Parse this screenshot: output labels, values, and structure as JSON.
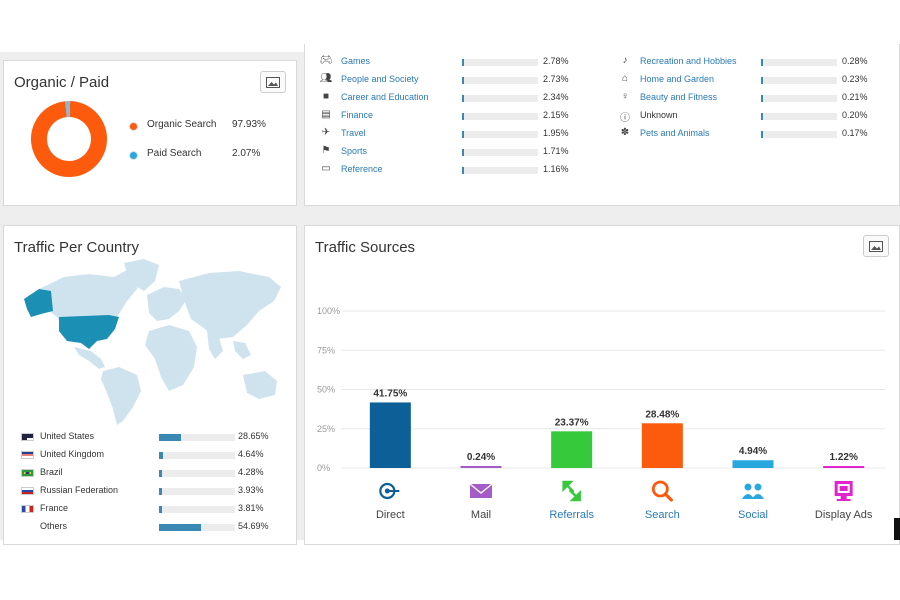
{
  "organic_paid": {
    "title": "Organic / Paid",
    "items": [
      {
        "label": "Organic Search",
        "value": "97.93%",
        "fraction": 0.9793,
        "color": "#fc5a0d"
      },
      {
        "label": "Paid Search",
        "value": "2.07%",
        "fraction": 0.0207,
        "color": "#29a8e0"
      }
    ]
  },
  "categories": {
    "left": [
      {
        "icon": "games-icon",
        "label": "Games",
        "value": "2.78%",
        "fraction": 0.0278
      },
      {
        "icon": "people-icon",
        "label": "People and Society",
        "value": "2.73%",
        "fraction": 0.0273
      },
      {
        "icon": "briefcase-icon",
        "label": "Career and Education",
        "value": "2.34%",
        "fraction": 0.0234
      },
      {
        "icon": "finance-icon",
        "label": "Finance",
        "value": "2.15%",
        "fraction": 0.0215
      },
      {
        "icon": "plane-icon",
        "label": "Travel",
        "value": "1.95%",
        "fraction": 0.0195
      },
      {
        "icon": "sports-icon",
        "label": "Sports",
        "value": "1.71%",
        "fraction": 0.0171
      },
      {
        "icon": "book-icon",
        "label": "Reference",
        "value": "1.16%",
        "fraction": 0.0116
      }
    ],
    "right": [
      {
        "icon": "guitar-icon",
        "label": "Recreation and Hobbies",
        "value": "0.28%",
        "fraction": 0.0028,
        "link": true
      },
      {
        "icon": "home-icon",
        "label": "Home and Garden",
        "value": "0.23%",
        "fraction": 0.0023,
        "link": true
      },
      {
        "icon": "fitness-icon",
        "label": "Beauty and Fitness",
        "value": "0.21%",
        "fraction": 0.0021,
        "link": true
      },
      {
        "icon": "unknown-icon",
        "label": "Unknown",
        "value": "0.20%",
        "fraction": 0.002,
        "link": false
      },
      {
        "icon": "paw-icon",
        "label": "Pets and Animals",
        "value": "0.17%",
        "fraction": 0.0017,
        "link": true
      }
    ]
  },
  "traffic_country": {
    "title": "Traffic Per Country",
    "rows": [
      {
        "flag": "us",
        "label": "United States",
        "value": "28.65%",
        "fraction": 0.2865
      },
      {
        "flag": "uk",
        "label": "United Kingdom",
        "value": "4.64%",
        "fraction": 0.0464
      },
      {
        "flag": "br",
        "label": "Brazil",
        "value": "4.28%",
        "fraction": 0.0428
      },
      {
        "flag": "ru",
        "label": "Russian Federation",
        "value": "3.93%",
        "fraction": 0.0393
      },
      {
        "flag": "fr",
        "label": "France",
        "value": "3.81%",
        "fraction": 0.0381
      },
      {
        "flag": "",
        "label": "Others",
        "value": "54.69%",
        "fraction": 0.5469
      }
    ]
  },
  "traffic_sources": {
    "title": "Traffic Sources"
  },
  "chart_data": {
    "type": "bar",
    "categories": [
      "Direct",
      "Mail",
      "Referrals",
      "Search",
      "Social",
      "Display Ads"
    ],
    "values": [
      41.75,
      0.24,
      23.37,
      28.48,
      4.94,
      1.22
    ],
    "value_labels": [
      "41.75%",
      "0.24%",
      "23.37%",
      "28.48%",
      "4.94%",
      "1.22%"
    ],
    "colors": [
      "#0d5f97",
      "#a45cc7",
      "#35c93b",
      "#fc5a0d",
      "#29a8e0",
      "#e025cc"
    ],
    "icons": [
      "direct-icon",
      "mail-icon",
      "referrals-icon",
      "search-icon",
      "social-icon",
      "display-ads-icon"
    ],
    "ylim": [
      0,
      100
    ],
    "yticks": [
      "0%",
      "25%",
      "50%",
      "75%",
      "100%"
    ],
    "ytick_values": [
      0,
      25,
      50,
      75,
      100
    ],
    "grid": true
  }
}
